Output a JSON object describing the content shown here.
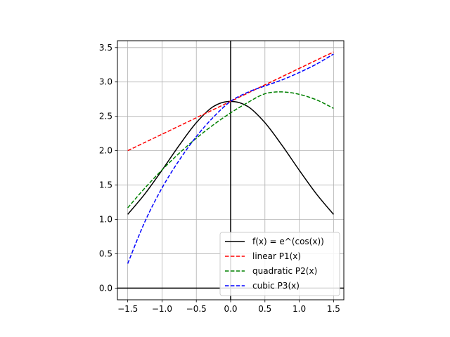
{
  "chart_data": {
    "type": "line",
    "title": "",
    "xlabel": "",
    "ylabel": "",
    "xlim": [
      -1.65,
      1.65
    ],
    "ylim": [
      -0.17,
      3.6
    ],
    "grid": true,
    "legend_position": "lower-right",
    "x_ticks": [
      -1.5,
      -1.0,
      -0.5,
      0.0,
      0.5,
      1.0,
      1.5
    ],
    "x_tick_labels": [
      "−1.5",
      "−1.0",
      "−0.5",
      "0.0",
      "0.5",
      "1.0",
      "1.5"
    ],
    "y_ticks": [
      0.0,
      0.5,
      1.0,
      1.5,
      2.0,
      2.5,
      3.0,
      3.5
    ],
    "y_tick_labels": [
      "0.0",
      "0.5",
      "1.0",
      "1.5",
      "2.0",
      "2.5",
      "3.0",
      "3.5"
    ],
    "x": [
      -1.5,
      -1.25,
      -1.0,
      -0.75,
      -0.5,
      -0.25,
      0.0,
      0.25,
      0.5,
      0.75,
      1.0,
      1.25,
      1.5
    ],
    "series": [
      {
        "name": "f(x) = e^(cos(x))",
        "color": "#000000",
        "dash": "solid",
        "values": [
          1.073,
          1.371,
          1.716,
          2.077,
          2.407,
          2.643,
          2.718,
          2.643,
          2.407,
          2.077,
          1.716,
          1.371,
          1.073
        ]
      },
      {
        "name": "linear P1(x)",
        "color": "#ff0000",
        "dash": "dashed",
        "values": [
          2.0,
          2.12,
          2.239,
          2.359,
          2.479,
          2.598,
          2.718,
          2.838,
          2.958,
          3.077,
          3.197,
          3.317,
          3.436
        ]
      },
      {
        "name": "quadratic P2(x)",
        "color": "#008000",
        "dash": "dashed",
        "values": [
          1.168,
          1.456,
          1.72,
          1.962,
          2.181,
          2.377,
          2.55,
          2.701,
          2.828,
          2.855,
          2.82,
          2.74,
          2.616
        ]
      },
      {
        "name": "cubic P3(x)",
        "color": "#0000ff",
        "dash": "dashed",
        "values": [
          0.357,
          0.966,
          1.457,
          1.86,
          2.205,
          2.489,
          2.718,
          2.85,
          2.942,
          3.03,
          3.137,
          3.259,
          3.406
        ]
      }
    ]
  }
}
